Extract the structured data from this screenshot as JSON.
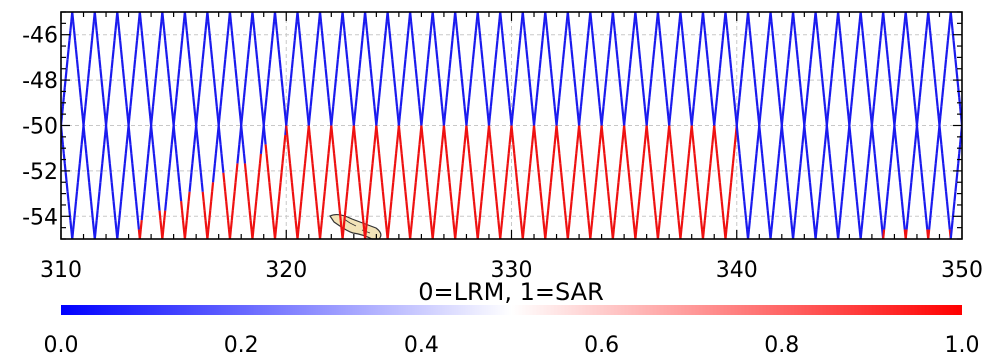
{
  "chart_data": {
    "type": "scatter",
    "title": "",
    "xlabel": "",
    "ylabel": "",
    "xlim": [
      310,
      350
    ],
    "ylim": [
      -55,
      -45
    ],
    "x_ticks": [
      310,
      320,
      330,
      340,
      350
    ],
    "x_tick_labels": [
      "310",
      "320",
      "330",
      "340",
      "350"
    ],
    "y_ticks": [
      -46,
      -48,
      -50,
      -52,
      -54
    ],
    "y_tick_labels": [
      "-46",
      "-48",
      "-50",
      "-52",
      "-54"
    ],
    "grid": true,
    "series_encoding": "ground tracks colored by mode value (0 = blue, 1 = red)",
    "track_crossing_spacing_deg_lon": 1.0,
    "track_slope_deg_lat_per_deg_lon": 10.0,
    "sar_regions": [
      {
        "lon_min": 312.5,
        "lon_max": 320.0,
        "lat_min": -55,
        "lat_max": -50.5,
        "edge": "diagonal"
      },
      {
        "lon_min": 320.0,
        "lon_max": 340.0,
        "lat_min": -55,
        "lat_max": -50.2
      },
      {
        "lon_min": 346.5,
        "lon_max": 349.5,
        "lat_min": -55,
        "lat_max": -54.7
      }
    ],
    "land": {
      "name": "island",
      "lon_range": [
        321.6,
        324.4
      ],
      "lat_range": [
        -55,
        -53.9
      ],
      "color": "#f2e3b8"
    },
    "colorbar": {
      "label": "0=LRM, 1=SAR",
      "min": 0.0,
      "max": 1.0,
      "ticks": [
        "0.0",
        "0.2",
        "0.4",
        "0.6",
        "0.8",
        "1.0"
      ],
      "colors": {
        "low": "#0000ff",
        "mid": "#ffffff",
        "high": "#ff0000"
      }
    }
  }
}
